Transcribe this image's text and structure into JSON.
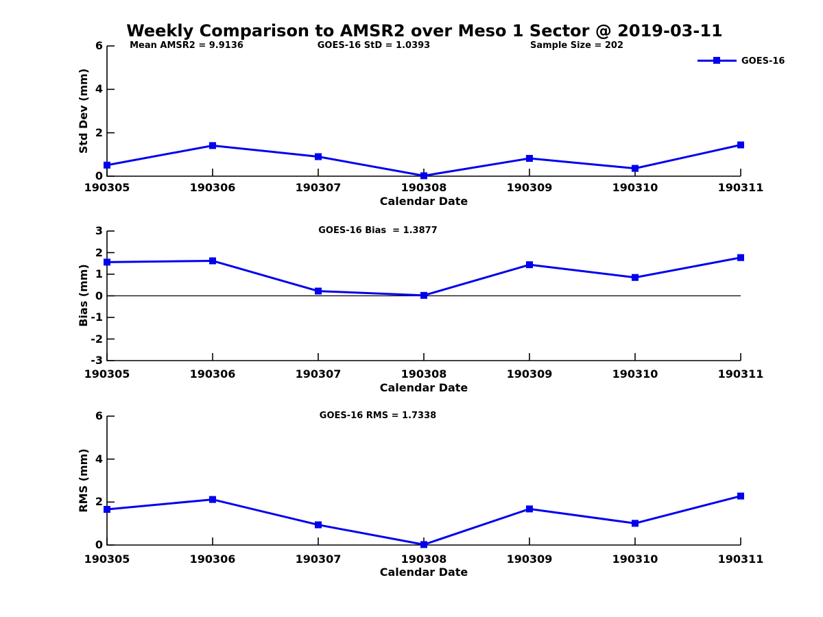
{
  "page_title": "Weekly Comparison to AMSR2 over Meso 1 Sector @ 2019-03-11",
  "colors": {
    "series": "#0000EE",
    "axis": "#000000",
    "text": "#000000",
    "background": "#ffffff"
  },
  "legend": {
    "label": "GOES-16",
    "position": "top-right",
    "marker": "square"
  },
  "chart_data": [
    {
      "id": "std_dev",
      "type": "line",
      "title": "",
      "annotations": [
        "Mean AMSR2 = 9.9136",
        "GOES-16 StD = 1.0393",
        "Sample Size = 202"
      ],
      "xlabel": "Calendar Date",
      "ylabel": "Std Dev (mm)",
      "categories": [
        "190305",
        "190306",
        "190307",
        "190308",
        "190309",
        "190310",
        "190311"
      ],
      "series": [
        {
          "name": "GOES-16",
          "color": "#0000EE",
          "marker": "square",
          "values": [
            0.51,
            1.41,
            0.9,
            0.02,
            0.82,
            0.36,
            1.44
          ]
        }
      ],
      "ylim": [
        0,
        6
      ],
      "yticks": [
        0,
        2,
        4,
        6
      ],
      "grid": false,
      "legend_visible": true
    },
    {
      "id": "bias",
      "type": "line",
      "title": "GOES-16 Bias  = 1.3877",
      "annotations": [],
      "xlabel": "Calendar Date",
      "ylabel": "Bias (mm)",
      "categories": [
        "190305",
        "190306",
        "190307",
        "190308",
        "190309",
        "190310",
        "190311"
      ],
      "series": [
        {
          "name": "GOES-16",
          "color": "#0000EE",
          "marker": "square",
          "values": [
            1.56,
            1.62,
            0.22,
            0.02,
            1.44,
            0.85,
            1.77
          ]
        }
      ],
      "ylim": [
        -3,
        3
      ],
      "yticks": [
        3,
        2,
        1,
        0,
        -1,
        -2,
        -3
      ],
      "zero_line": true,
      "grid": false,
      "legend_visible": false
    },
    {
      "id": "rms",
      "type": "line",
      "title": "GOES-16 RMS = 1.7338",
      "annotations": [],
      "xlabel": "Calendar Date",
      "ylabel": "RMS (mm)",
      "categories": [
        "190305",
        "190306",
        "190307",
        "190308",
        "190309",
        "190310",
        "190311"
      ],
      "series": [
        {
          "name": "GOES-16",
          "color": "#0000EE",
          "marker": "square",
          "values": [
            1.66,
            2.12,
            0.94,
            0.02,
            1.68,
            1.01,
            2.28
          ]
        }
      ],
      "ylim": [
        0,
        6
      ],
      "yticks": [
        0,
        2,
        4,
        6
      ],
      "grid": false,
      "legend_visible": false
    }
  ]
}
